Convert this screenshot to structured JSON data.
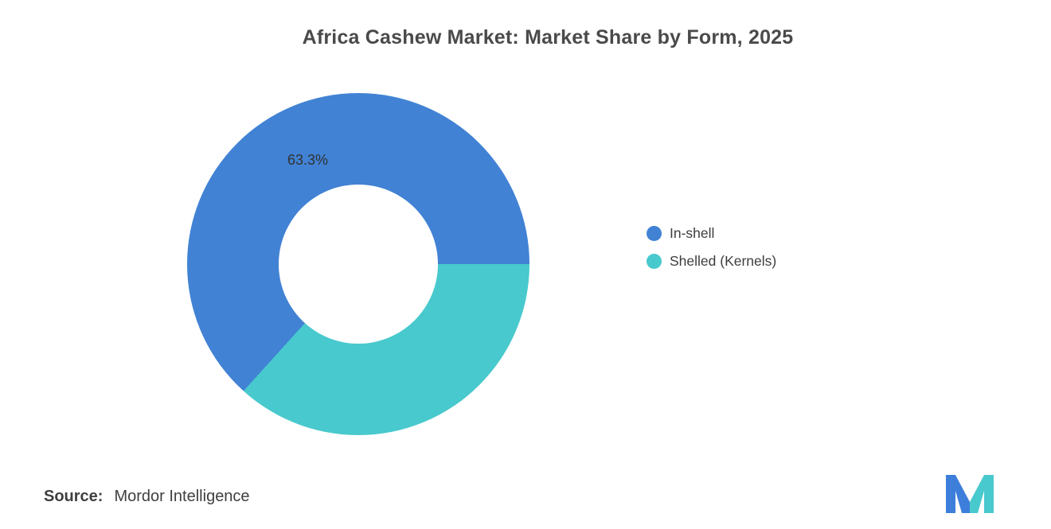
{
  "title": "Africa Cashew Market: Market Share by Form, 2025",
  "chart_data": {
    "type": "pie",
    "title": "Africa Cashew Market: Market Share by Form, 2025",
    "categories": [
      "In-shell",
      "Shelled (Kernels)"
    ],
    "values": [
      63.3,
      36.7
    ],
    "colors": [
      "#4182d4",
      "#48c9cd"
    ],
    "donut": true,
    "inner_radius_ratio": 0.465,
    "start_angle_deg": 90,
    "data_labels": [
      "63.3%"
    ],
    "label_color": "#333333",
    "legend_position": "right",
    "background": "#ffffff"
  },
  "legend": {
    "items": [
      {
        "label": "In-shell",
        "color": "#4182d4"
      },
      {
        "label": "Shelled (Kernels)",
        "color": "#48c9cd"
      }
    ]
  },
  "source": {
    "label": "Source:",
    "text": "Mordor Intelligence"
  },
  "logo": {
    "name": "mordor-intelligence-logo",
    "blue": "#3d7edb",
    "teal": "#48c9cd"
  }
}
